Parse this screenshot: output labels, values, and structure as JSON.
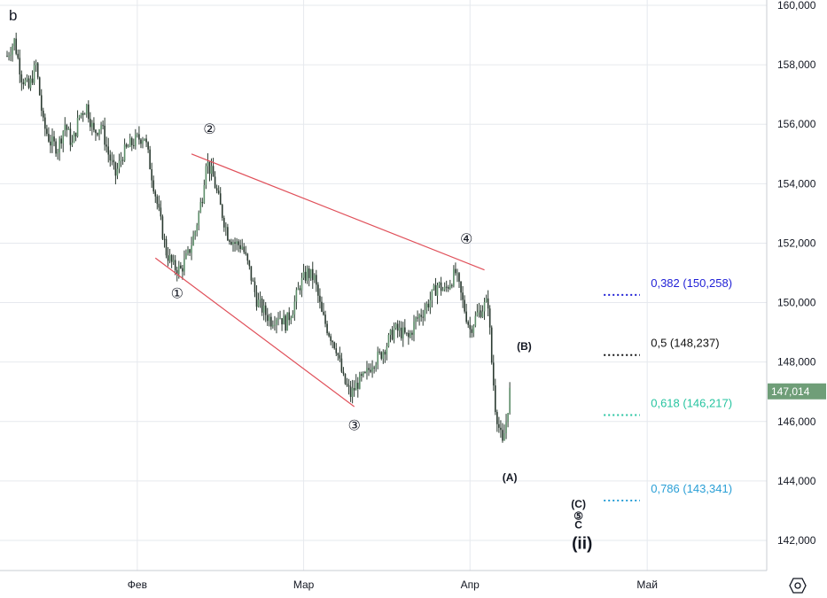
{
  "chart_data": {
    "type": "candlestick",
    "corner_label": "b",
    "y_ticks": [
      142000,
      144000,
      146000,
      148000,
      150000,
      152000,
      154000,
      156000,
      158000,
      160000
    ],
    "y_tick_labels": [
      "142,000",
      "144,000",
      "146,000",
      "148,000",
      "150,000",
      "152,000",
      "154,000",
      "156,000",
      "158,000",
      "160,000"
    ],
    "ylim": [
      140800,
      160200
    ],
    "x_months": [
      {
        "label": "Фев",
        "idx": 36
      },
      {
        "label": "Мар",
        "idx": 82
      },
      {
        "label": "Апр",
        "idx": 128
      },
      {
        "label": "Май",
        "idx": 177
      }
    ],
    "x_range": [
      0,
      214
    ],
    "last_price": "147,014",
    "last_value": 147014,
    "colors": {
      "candle": "#2a3a30",
      "trendline": "#e0505a",
      "grid": "#e6e9ee",
      "last_price_bg": "#6f9e78",
      "fib_0382": "#1f1fd6",
      "fib_05": "#111111",
      "fib_0618": "#26c4a0",
      "fib_0786": "#2a9fd6"
    },
    "close_path": [
      [
        0,
        158300
      ],
      [
        2,
        158800
      ],
      [
        4,
        157600
      ],
      [
        6,
        157200
      ],
      [
        8,
        158000
      ],
      [
        10,
        156000
      ],
      [
        12,
        155400
      ],
      [
        14,
        155200
      ],
      [
        16,
        156000
      ],
      [
        18,
        155300
      ],
      [
        20,
        156300
      ],
      [
        22,
        156600
      ],
      [
        24,
        155700
      ],
      [
        26,
        156000
      ],
      [
        28,
        155000
      ],
      [
        30,
        154300
      ],
      [
        32,
        155000
      ],
      [
        34,
        155300
      ],
      [
        36,
        155500
      ],
      [
        38,
        155600
      ],
      [
        40,
        154300
      ],
      [
        42,
        153000
      ],
      [
        44,
        151700
      ],
      [
        46,
        151200
      ],
      [
        48,
        151100
      ],
      [
        50,
        151600
      ],
      [
        52,
        152400
      ],
      [
        54,
        153600
      ],
      [
        55,
        154800
      ],
      [
        57,
        154200
      ],
      [
        59,
        153200
      ],
      [
        61,
        152300
      ],
      [
        63,
        152000
      ],
      [
        65,
        151900
      ],
      [
        67,
        151100
      ],
      [
        69,
        150100
      ],
      [
        71,
        149700
      ],
      [
        73,
        149400
      ],
      [
        75,
        149600
      ],
      [
        77,
        149300
      ],
      [
        79,
        149800
      ],
      [
        81,
        150600
      ],
      [
        83,
        151000
      ],
      [
        85,
        150800
      ],
      [
        87,
        149600
      ],
      [
        89,
        149000
      ],
      [
        91,
        148500
      ],
      [
        93,
        147400
      ],
      [
        95,
        146900
      ],
      [
        97,
        147300
      ],
      [
        99,
        147500
      ],
      [
        101,
        148000
      ],
      [
        103,
        148200
      ],
      [
        105,
        148600
      ],
      [
        107,
        149100
      ],
      [
        109,
        149000
      ],
      [
        111,
        148800
      ],
      [
        113,
        149400
      ],
      [
        115,
        149700
      ],
      [
        117,
        150100
      ],
      [
        119,
        150600
      ],
      [
        121,
        150400
      ],
      [
        123,
        150800
      ],
      [
        124,
        151000
      ],
      [
        126,
        150000
      ],
      [
        128,
        149100
      ],
      [
        130,
        149600
      ],
      [
        132,
        149900
      ],
      [
        133,
        150000
      ],
      [
        134,
        148000
      ],
      [
        135,
        146500
      ],
      [
        136,
        145800
      ],
      [
        137,
        145200
      ],
      [
        138,
        146000
      ],
      [
        139,
        147000
      ]
    ],
    "waves": [
      {
        "label": "①",
        "idx": 47,
        "value": 151050,
        "pos": "below"
      },
      {
        "label": "②",
        "idx": 56,
        "value": 154850,
        "pos": "above"
      },
      {
        "label": "③",
        "idx": 96,
        "value": 146600,
        "pos": "below"
      },
      {
        "label": "④",
        "idx": 127,
        "value": 151150,
        "pos": "above"
      }
    ],
    "wave_marks": [
      {
        "label": "(B)",
        "idx": 143,
        "value": 148400
      },
      {
        "label": "(A)",
        "idx": 139,
        "value": 144000
      },
      {
        "label": "(C)",
        "idx": 158,
        "value": 143100
      },
      {
        "label": "⑤",
        "idx": 158,
        "value": 142700
      },
      {
        "label": "C",
        "idx": 158,
        "value": 142400
      }
    ],
    "big_label": {
      "label": "(ii)",
      "idx": 159,
      "value": 141900
    },
    "trendlines": [
      {
        "from": [
          51,
          155000
        ],
        "to": [
          132,
          151100
        ]
      },
      {
        "from": [
          41,
          151500
        ],
        "to": [
          96,
          146500
        ]
      }
    ],
    "fib_levels": [
      {
        "ratio": "0,382",
        "price": "150,258",
        "value": 150258,
        "key": "fib_0382"
      },
      {
        "ratio": "0,5",
        "price": "148,237",
        "value": 148237,
        "key": "fib_05"
      },
      {
        "ratio": "0,618",
        "price": "146,217",
        "value": 146217,
        "key": "fib_0618"
      },
      {
        "ratio": "0,786",
        "price": "143,341",
        "value": 143341,
        "key": "fib_0786"
      }
    ],
    "fib_dots_from_idx": 165,
    "fib_dots_to_idx": 175,
    "fib_text_idx": 178
  },
  "toolbar": {
    "settings_icon": "settings-icon"
  }
}
